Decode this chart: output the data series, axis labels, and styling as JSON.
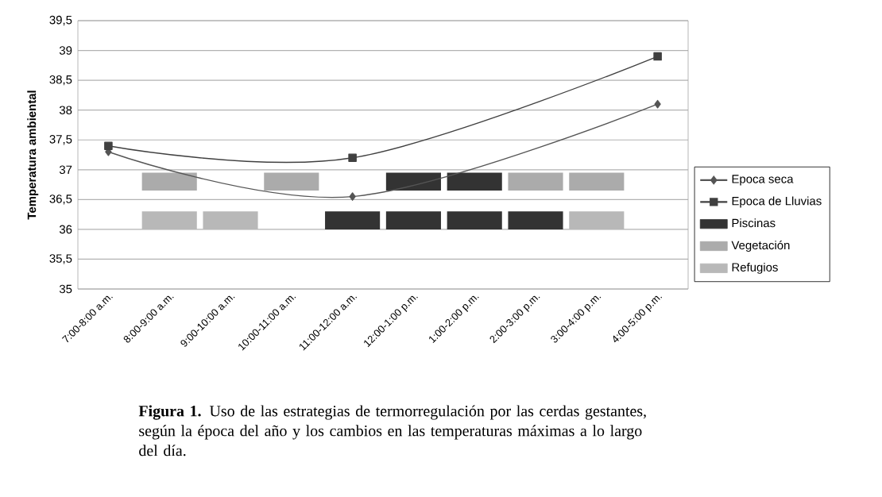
{
  "chart_data": {
    "type": "bar",
    "categories": [
      "7:00-8:00 a.m.",
      "8:00-9:00 a.m.",
      "9:00-10:00 a.m.",
      "10:00-11:00 a.m.",
      "11:00-12:00 a.m.",
      "12:00-1:00 p.m.",
      "1:00-2:00 p.m.",
      "2:00-3:00 p.m.",
      "3:00-4:00 p.m.",
      "4:00-5:00 p.m."
    ],
    "ylabel": "Temperatura ambiental",
    "ylim": [
      35,
      39.5
    ],
    "yticks": [
      35,
      {
        "value": 35.5,
        "label": "35,5"
      },
      36,
      {
        "value": 36.5,
        "label": "36,5"
      },
      37,
      {
        "value": 37.5,
        "label": "37,5"
      },
      38,
      {
        "value": 38.5,
        "label": "38,5"
      },
      39,
      {
        "value": 39.5,
        "label": "39,5"
      }
    ],
    "grid": "y",
    "legend": "right",
    "series": [
      {
        "name": "Epoca seca",
        "type": "line",
        "marker": "diamond",
        "color": "#555555",
        "values": [
          37.3,
          null,
          null,
          null,
          36.55,
          null,
          null,
          null,
          null,
          38.1
        ]
      },
      {
        "name": "Epoca de Lluvias",
        "type": "line",
        "marker": "square",
        "color": "#404040",
        "values": [
          37.4,
          null,
          null,
          null,
          37.2,
          null,
          null,
          null,
          null,
          38.9
        ]
      },
      {
        "name": "Piscinas",
        "color": "#333333",
        "values": [
          null,
          null,
          null,
          null,
          null,
          0.3,
          0.3,
          null,
          null,
          null
        ],
        "base": [
          null,
          null,
          null,
          null,
          null,
          36.65,
          36.65,
          null,
          null,
          null
        ]
      },
      {
        "color": "#333333",
        "values": [
          null,
          null,
          null,
          null,
          0.3,
          0.3,
          0.3,
          0.3,
          null,
          null
        ],
        "base": [
          null,
          null,
          null,
          null,
          36,
          36,
          36,
          36,
          null,
          null
        ]
      },
      {
        "name": "Vegetación",
        "color": "#ababab",
        "values": [
          null,
          0.3,
          null,
          0.3,
          null,
          null,
          null,
          0.3,
          0.3,
          null
        ],
        "base": [
          null,
          36.65,
          null,
          36.65,
          null,
          null,
          null,
          36.65,
          36.65,
          null
        ]
      },
      {
        "name": "Refugios",
        "color": "#b8b8b8",
        "values": [
          null,
          0.3,
          0.3,
          null,
          null,
          null,
          null,
          null,
          0.3,
          null
        ],
        "base": [
          null,
          36,
          36,
          null,
          null,
          null,
          null,
          null,
          36,
          null
        ]
      }
    ],
    "annotations": [
      "**Figura 1.** Uso de las estrategias de termorregulación por las cerdas gestantes, según la época del año y los cambios en las temperaturas máximas a lo largo del día."
    ]
  }
}
